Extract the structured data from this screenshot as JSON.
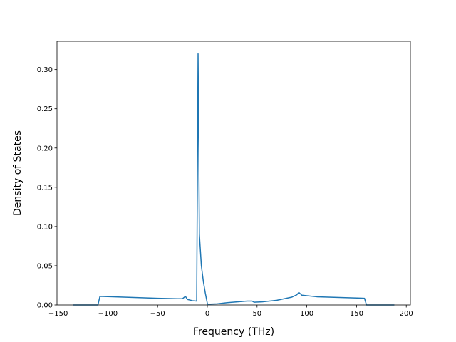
{
  "chart_data": {
    "type": "line",
    "xlabel": "Frequency (THz)",
    "ylabel": "Density of States",
    "x": [
      -135,
      -110,
      -108,
      -50,
      -30,
      -25,
      -22,
      -20,
      -15,
      -11,
      -10.7,
      -9.3,
      -8,
      -6,
      -4,
      -2,
      0,
      0.5,
      10,
      20,
      40,
      45,
      47,
      55,
      70,
      85,
      90,
      92,
      95,
      110,
      158,
      160,
      188
    ],
    "series": [
      {
        "color": "#1f77b4",
        "values": [
          0,
          0,
          0.011,
          0.0085,
          0.008,
          0.008,
          0.011,
          0.007,
          0.0055,
          0.005,
          0.005,
          0.32,
          0.09,
          0.05,
          0.03,
          0.015,
          0.002,
          0.001,
          0.0015,
          0.003,
          0.005,
          0.005,
          0.0035,
          0.004,
          0.006,
          0.01,
          0.013,
          0.016,
          0.0125,
          0.0105,
          0.0085,
          0,
          0
        ]
      }
    ],
    "xlim": [
      -151.15,
      204.15
    ],
    "ylim": [
      0,
      0.336
    ],
    "xticks": [
      {
        "value": -150,
        "label": "−150"
      },
      {
        "value": -100,
        "label": "−100"
      },
      {
        "value": -50,
        "label": "−50"
      },
      0,
      50,
      100,
      150,
      200
    ],
    "yticks": [
      {
        "value": 0,
        "label": "0.00"
      },
      {
        "value": 0.05,
        "label": "0.05"
      },
      {
        "value": 0.1,
        "label": "0.10"
      },
      {
        "value": 0.15,
        "label": "0.15"
      },
      {
        "value": 0.2,
        "label": "0.20"
      },
      {
        "value": 0.25,
        "label": "0.25"
      },
      {
        "value": 0.3,
        "label": "0.30"
      }
    ]
  }
}
